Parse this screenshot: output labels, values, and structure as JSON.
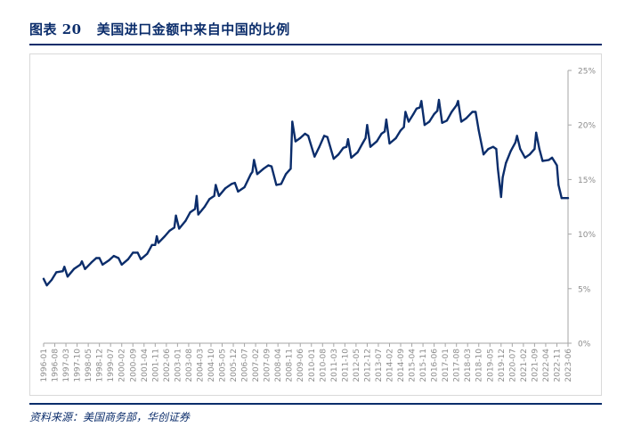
{
  "header": {
    "partial_text": "",
    "figure_label": "图表 20",
    "figure_title": "美国进口金额中来自中国的比例"
  },
  "footer": {
    "source": "资料来源：美国商务部，华创证券"
  },
  "colors": {
    "line": "#0b2d6b",
    "rule": "#0b2d6b",
    "axis": "#a6a6a6",
    "tick_text": "#8c8c8c"
  },
  "chart_data": {
    "type": "line",
    "title": "美国进口金额中来自中国的比例",
    "xlabel": "",
    "ylabel": "",
    "x_start": "1996-01",
    "x_end": "2023-06",
    "ylim": [
      0,
      25
    ],
    "y_ticks": [
      "0%",
      "5%",
      "10%",
      "15%",
      "20%",
      "25%"
    ],
    "x_tick_labels": [
      "1996-01",
      "1996-08",
      "1997-03",
      "1997-10",
      "1998-05",
      "1998-12",
      "1999-07",
      "2000-02",
      "2000-09",
      "2001-04",
      "2001-11",
      "2002-06",
      "2003-01",
      "2003-08",
      "2004-03",
      "2004-10",
      "2005-05",
      "2005-12",
      "2006-07",
      "2007-02",
      "2007-09",
      "2008-04",
      "2008-11",
      "2009-06",
      "2010-01",
      "2010-08",
      "2011-03",
      "2011-10",
      "2012-05",
      "2012-12",
      "2013-07",
      "2014-02",
      "2014-09",
      "2015-04",
      "2015-11",
      "2016-06",
      "2017-01",
      "2017-08",
      "2018-03",
      "2018-10",
      "2019-05",
      "2019-12",
      "2020-07",
      "2021-02",
      "2021-09",
      "2022-04",
      "2022-11",
      "2023-06"
    ],
    "grid": false,
    "series": [
      {
        "name": "",
        "points": [
          [
            "1996-01",
            5.9
          ],
          [
            "1996-03",
            5.3
          ],
          [
            "1996-06",
            5.8
          ],
          [
            "1996-09",
            6.5
          ],
          [
            "1997-01",
            6.6
          ],
          [
            "1997-02",
            7.0
          ],
          [
            "1997-04",
            6.1
          ],
          [
            "1997-08",
            6.8
          ],
          [
            "1997-12",
            7.2
          ],
          [
            "1998-01",
            7.5
          ],
          [
            "1998-03",
            6.8
          ],
          [
            "1998-07",
            7.4
          ],
          [
            "1998-10",
            7.8
          ],
          [
            "1998-12",
            7.8
          ],
          [
            "1999-02",
            7.2
          ],
          [
            "1999-06",
            7.6
          ],
          [
            "1999-09",
            8.0
          ],
          [
            "1999-12",
            7.8
          ],
          [
            "2000-02",
            7.2
          ],
          [
            "2000-06",
            7.7
          ],
          [
            "2000-09",
            8.3
          ],
          [
            "2000-12",
            8.3
          ],
          [
            "2001-02",
            7.7
          ],
          [
            "2001-06",
            8.2
          ],
          [
            "2001-09",
            9.0
          ],
          [
            "2001-11",
            9.0
          ],
          [
            "2001-12",
            9.8
          ],
          [
            "2002-01",
            9.2
          ],
          [
            "2002-05",
            9.8
          ],
          [
            "2002-08",
            10.3
          ],
          [
            "2002-11",
            10.6
          ],
          [
            "2002-12",
            11.7
          ],
          [
            "2003-02",
            10.5
          ],
          [
            "2003-06",
            11.2
          ],
          [
            "2003-09",
            12.0
          ],
          [
            "2003-12",
            12.3
          ],
          [
            "2004-01",
            13.5
          ],
          [
            "2004-02",
            11.8
          ],
          [
            "2004-06",
            12.5
          ],
          [
            "2004-09",
            13.2
          ],
          [
            "2004-12",
            13.5
          ],
          [
            "2005-01",
            14.5
          ],
          [
            "2005-03",
            13.5
          ],
          [
            "2005-07",
            14.2
          ],
          [
            "2005-11",
            14.6
          ],
          [
            "2006-01",
            14.7
          ],
          [
            "2006-03",
            13.9
          ],
          [
            "2006-07",
            14.3
          ],
          [
            "2006-11",
            15.5
          ],
          [
            "2006-12",
            15.7
          ],
          [
            "2007-01",
            16.8
          ],
          [
            "2007-03",
            15.5
          ],
          [
            "2007-07",
            16.0
          ],
          [
            "2007-10",
            16.3
          ],
          [
            "2007-12",
            16.2
          ],
          [
            "2008-03",
            14.5
          ],
          [
            "2008-06",
            14.6
          ],
          [
            "2008-09",
            15.5
          ],
          [
            "2008-12",
            16.0
          ],
          [
            "2009-01",
            20.3
          ],
          [
            "2009-03",
            18.5
          ],
          [
            "2009-06",
            18.8
          ],
          [
            "2009-09",
            19.2
          ],
          [
            "2009-11",
            19.0
          ],
          [
            "2010-03",
            17.1
          ],
          [
            "2010-06",
            18.0
          ],
          [
            "2010-09",
            19.0
          ],
          [
            "2010-11",
            18.9
          ],
          [
            "2011-03",
            16.9
          ],
          [
            "2011-06",
            17.3
          ],
          [
            "2011-09",
            17.9
          ],
          [
            "2011-11",
            18.0
          ],
          [
            "2011-12",
            18.7
          ],
          [
            "2012-02",
            17.0
          ],
          [
            "2012-06",
            17.5
          ],
          [
            "2012-09",
            18.3
          ],
          [
            "2012-11",
            18.8
          ],
          [
            "2012-12",
            20.0
          ],
          [
            "2013-02",
            18.0
          ],
          [
            "2013-06",
            18.5
          ],
          [
            "2013-09",
            19.2
          ],
          [
            "2013-11",
            19.4
          ],
          [
            "2013-12",
            20.5
          ],
          [
            "2014-02",
            18.3
          ],
          [
            "2014-06",
            18.8
          ],
          [
            "2014-09",
            19.5
          ],
          [
            "2014-11",
            19.8
          ],
          [
            "2014-12",
            21.2
          ],
          [
            "2015-02",
            20.3
          ],
          [
            "2015-05",
            21.0
          ],
          [
            "2015-07",
            21.5
          ],
          [
            "2015-09",
            21.6
          ],
          [
            "2015-10",
            22.2
          ],
          [
            "2015-12",
            20.0
          ],
          [
            "2016-03",
            20.3
          ],
          [
            "2016-06",
            21.0
          ],
          [
            "2016-08",
            21.3
          ],
          [
            "2016-09",
            22.3
          ],
          [
            "2016-11",
            20.2
          ],
          [
            "2017-02",
            20.4
          ],
          [
            "2017-05",
            21.2
          ],
          [
            "2017-08",
            21.8
          ],
          [
            "2017-09",
            22.2
          ],
          [
            "2017-11",
            20.3
          ],
          [
            "2018-02",
            20.6
          ],
          [
            "2018-06",
            21.2
          ],
          [
            "2018-08",
            21.2
          ],
          [
            "2018-10",
            19.5
          ],
          [
            "2019-01",
            17.3
          ],
          [
            "2019-04",
            17.8
          ],
          [
            "2019-07",
            18.0
          ],
          [
            "2019-09",
            17.8
          ],
          [
            "2019-10",
            16.0
          ],
          [
            "2019-12",
            13.4
          ],
          [
            "2020-01",
            15.2
          ],
          [
            "2020-03",
            16.5
          ],
          [
            "2020-06",
            17.6
          ],
          [
            "2020-09",
            18.4
          ],
          [
            "2020-10",
            19.0
          ],
          [
            "2020-12",
            17.8
          ],
          [
            "2021-03",
            17.0
          ],
          [
            "2021-06",
            17.3
          ],
          [
            "2021-09",
            17.8
          ],
          [
            "2021-10",
            19.3
          ],
          [
            "2021-12",
            17.8
          ],
          [
            "2022-02",
            16.7
          ],
          [
            "2022-06",
            16.8
          ],
          [
            "2022-08",
            17.0
          ],
          [
            "2022-11",
            16.3
          ],
          [
            "2022-12",
            14.5
          ],
          [
            "2023-02",
            13.3
          ],
          [
            "2023-06",
            13.3
          ]
        ]
      }
    ]
  }
}
